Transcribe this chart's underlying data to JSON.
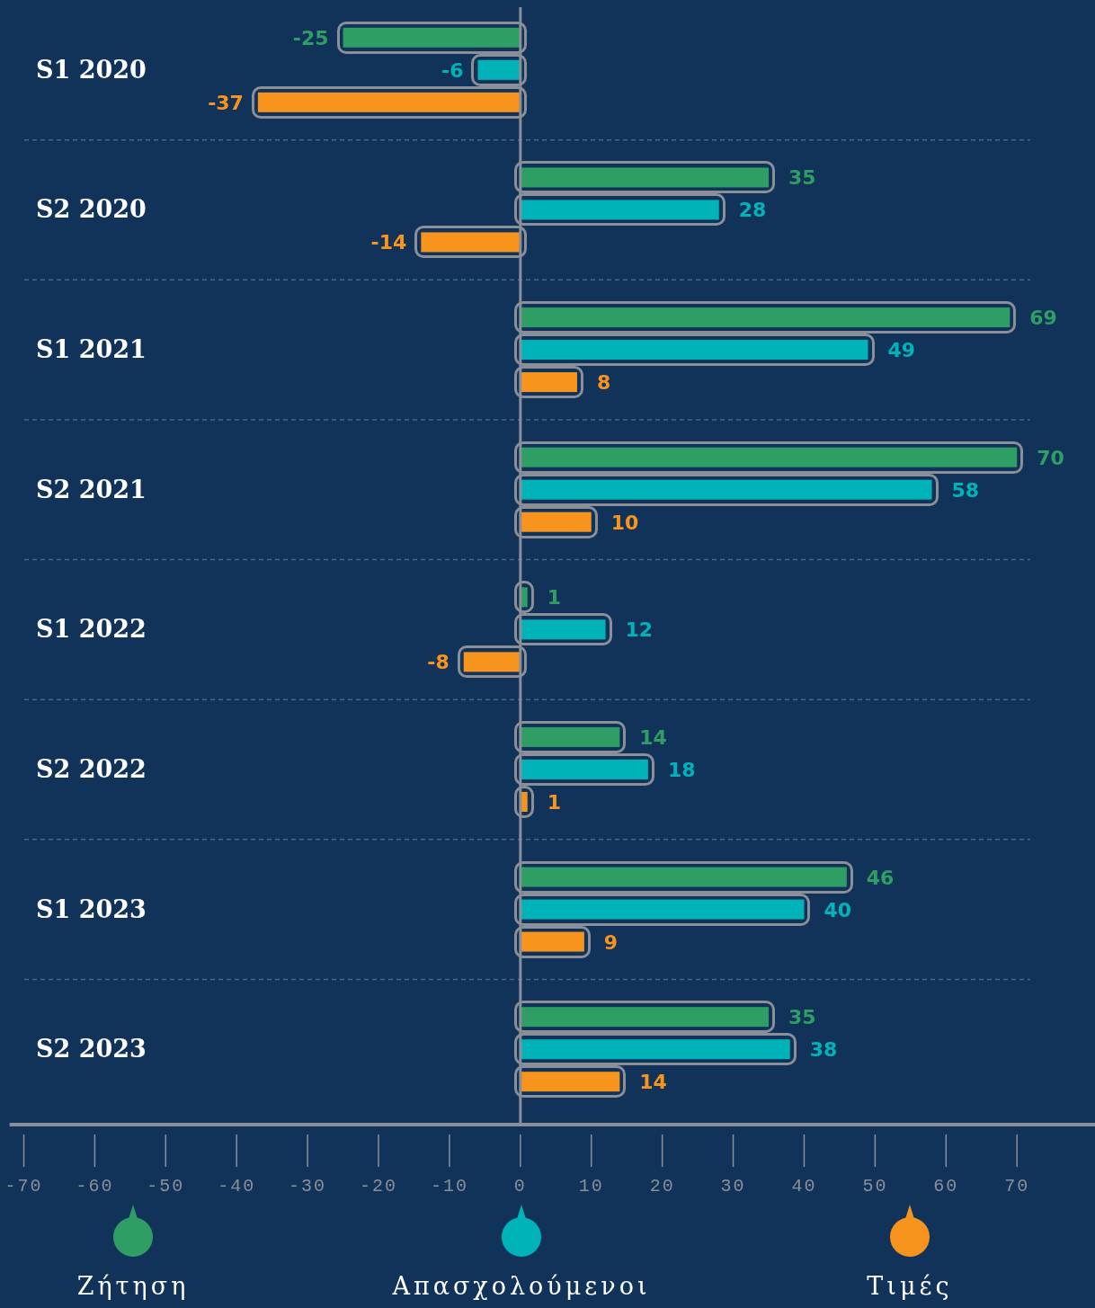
{
  "chart_data": {
    "type": "bar",
    "orientation": "horizontal",
    "categories": [
      "S1 2020",
      "S2 2020",
      "S1 2021",
      "S2 2021",
      "S1 2022",
      "S2 2022",
      "S1 2023",
      "S2 2023"
    ],
    "series": [
      {
        "name": "Ζήτηση",
        "color": "#2e9e64",
        "values": [
          -25,
          35,
          69,
          70,
          1,
          14,
          46,
          35
        ]
      },
      {
        "name": "Απασχολούμενοι",
        "color": "#00b3b9",
        "values": [
          -6,
          28,
          49,
          58,
          12,
          18,
          40,
          38
        ]
      },
      {
        "name": "Τιμές",
        "color": "#f7941d",
        "values": [
          -37,
          -14,
          8,
          10,
          -8,
          1,
          9,
          14
        ]
      }
    ],
    "xlim": [
      -72,
      81
    ],
    "xticks": [
      -70,
      -60,
      -50,
      -40,
      -30,
      -20,
      -10,
      0,
      10,
      20,
      30,
      40,
      50,
      60,
      70
    ],
    "data_labels": true,
    "grid": "y",
    "legend": "bottom"
  }
}
